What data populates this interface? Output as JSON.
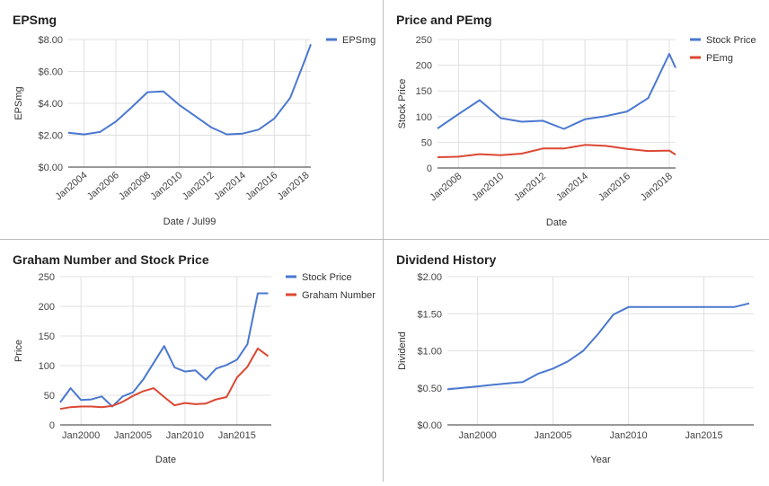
{
  "charts": [
    {
      "type": "line",
      "title": "EPSmg",
      "xlabel": "Date / Jul99",
      "ylabel": "EPSmg",
      "x_axis": "date",
      "xlim": [
        2003.0,
        2018.3
      ],
      "ylim": [
        0,
        8
      ],
      "yticks": [
        0,
        2,
        4,
        6,
        8
      ],
      "ytick_labels": [
        "$0.00",
        "$2.00",
        "$4.00",
        "$6.00",
        "$8.00"
      ],
      "xticks": [
        2004,
        2006,
        2008,
        2010,
        2012,
        2014,
        2016,
        2018
      ],
      "xtick_labels": [
        "Jan2004",
        "Jan2006",
        "Jan2008",
        "Jan2010",
        "Jan2012",
        "Jan2014",
        "Jan2016",
        "Jan2018"
      ],
      "xtick_rotated": true,
      "legend": "right",
      "series": [
        {
          "name": "EPSmg",
          "color": "#4a78d0",
          "x": [
            2003.0,
            2004.0,
            2005.0,
            2006.0,
            2007.0,
            2008.0,
            2009.0,
            2010.0,
            2011.0,
            2012.0,
            2013.0,
            2014.0,
            2015.0,
            2016.0,
            2017.0,
            2018.0,
            2018.3
          ],
          "values": [
            2.15,
            2.05,
            2.2,
            2.85,
            3.75,
            4.7,
            4.75,
            3.9,
            3.2,
            2.5,
            2.05,
            2.1,
            2.35,
            3.05,
            4.35,
            6.9,
            7.7
          ]
        }
      ]
    },
    {
      "type": "line",
      "title": "Price and PEmg",
      "xlabel": "Date",
      "ylabel": "Stock Price",
      "x_axis": "date",
      "xlim": [
        2007.0,
        2018.3
      ],
      "ylim": [
        0,
        250
      ],
      "yticks": [
        0,
        50,
        100,
        150,
        200,
        250
      ],
      "ytick_labels": [
        "0",
        "50",
        "100",
        "150",
        "200",
        "250"
      ],
      "xticks": [
        2008,
        2010,
        2012,
        2014,
        2016,
        2018
      ],
      "xtick_labels": [
        "Jan2008",
        "Jan2010",
        "Jan2012",
        "Jan2014",
        "Jan2016",
        "Jan2018"
      ],
      "xtick_rotated": true,
      "legend": "right",
      "series": [
        {
          "name": "Stock Price",
          "color": "#4a78d0",
          "x": [
            2007.0,
            2008.0,
            2009.0,
            2010.0,
            2011.0,
            2012.0,
            2013.0,
            2014.0,
            2015.0,
            2016.0,
            2017.0,
            2018.0,
            2018.3
          ],
          "values": [
            77,
            105,
            132,
            97,
            90,
            92,
            76,
            95,
            101,
            110,
            136,
            222,
            195
          ]
        },
        {
          "name": "PEmg",
          "color": "#dc4733",
          "x": [
            2007.0,
            2008.0,
            2009.0,
            2010.0,
            2011.0,
            2012.0,
            2013.0,
            2014.0,
            2015.0,
            2016.0,
            2017.0,
            2018.0,
            2018.3
          ],
          "values": [
            21,
            22,
            27,
            25,
            28,
            38,
            38,
            45,
            43,
            37,
            33,
            34,
            26
          ]
        }
      ]
    },
    {
      "type": "line",
      "title": "Graham Number and Stock Price",
      "xlabel": "Date",
      "ylabel": "Price",
      "x_axis": "date",
      "xlim": [
        1998.0,
        2018.3
      ],
      "ylim": [
        0,
        250
      ],
      "yticks": [
        0,
        50,
        100,
        150,
        200,
        250
      ],
      "ytick_labels": [
        "0",
        "50",
        "100",
        "150",
        "200",
        "250"
      ],
      "xticks": [
        2000,
        2005,
        2010,
        2015
      ],
      "xtick_labels": [
        "Jan2000",
        "Jan2005",
        "Jan2010",
        "Jan2015"
      ],
      "xtick_rotated": false,
      "legend": "right",
      "series": [
        {
          "name": "Stock Price",
          "color": "#4a78d0",
          "x": [
            1998.0,
            1999.0,
            2000.0,
            2001.0,
            2002.0,
            2003.0,
            2004.0,
            2005.0,
            2006.0,
            2007.0,
            2008.0,
            2009.0,
            2010.0,
            2011.0,
            2012.0,
            2013.0,
            2014.0,
            2015.0,
            2016.0,
            2017.0,
            2018.0
          ],
          "values": [
            38,
            62,
            42,
            43,
            48,
            31,
            48,
            55,
            77,
            105,
            133,
            97,
            90,
            92,
            76,
            95,
            101,
            110,
            136,
            222,
            222
          ]
        },
        {
          "name": "Graham Number",
          "color": "#dc4733",
          "x": [
            1998.0,
            1999.0,
            2000.0,
            2001.0,
            2002.0,
            2003.0,
            2004.0,
            2005.0,
            2006.0,
            2007.0,
            2008.0,
            2009.0,
            2010.0,
            2011.0,
            2012.0,
            2013.0,
            2014.0,
            2015.0,
            2016.0,
            2017.0,
            2018.0
          ],
          "values": [
            27,
            30,
            31,
            31,
            30,
            32,
            39,
            49,
            57,
            62,
            47,
            33,
            37,
            35,
            36,
            43,
            47,
            80,
            98,
            129,
            116
          ]
        }
      ]
    },
    {
      "type": "line",
      "title": "Dividend History",
      "xlabel": "Year",
      "ylabel": "Dividend",
      "x_axis": "date",
      "xlim": [
        1998.0,
        2018.3
      ],
      "ylim": [
        0,
        2
      ],
      "yticks": [
        0,
        0.5,
        1,
        1.5,
        2
      ],
      "ytick_labels": [
        "$0.00",
        "$0.50",
        "$1.00",
        "$1.50",
        "$2.00"
      ],
      "xticks": [
        2000,
        2005,
        2010,
        2015
      ],
      "xtick_labels": [
        "Jan2000",
        "Jan2005",
        "Jan2010",
        "Jan2015"
      ],
      "xtick_rotated": false,
      "legend": "none",
      "series": [
        {
          "name": "",
          "color": "#4a78d0",
          "x": [
            1998.0,
            1999.0,
            2000.0,
            2001.0,
            2002.0,
            2003.0,
            2004.0,
            2005.0,
            2006.0,
            2007.0,
            2008.0,
            2009.0,
            2010.0,
            2011.0,
            2012.0,
            2013.0,
            2014.0,
            2015.0,
            2016.0,
            2017.0,
            2018.0
          ],
          "values": [
            0.48,
            0.5,
            0.52,
            0.54,
            0.56,
            0.58,
            0.69,
            0.76,
            0.86,
            1.0,
            1.23,
            1.49,
            1.59,
            1.59,
            1.59,
            1.59,
            1.59,
            1.59,
            1.59,
            1.59,
            1.64
          ]
        }
      ]
    }
  ]
}
